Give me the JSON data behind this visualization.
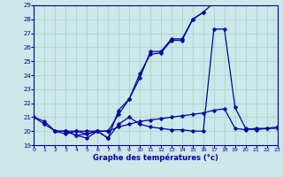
{
  "xlabel": "Graphe des températures (°c)",
  "bg_color": "#cce8e8",
  "grid_color": "#aacccc",
  "line_color": "#0000aa",
  "x_min": 0,
  "x_max": 23,
  "y_min": 19,
  "y_max": 29,
  "series1_x": [
    0,
    1,
    2,
    3,
    4,
    5,
    6,
    7,
    8,
    9,
    10,
    11,
    12,
    13,
    14,
    15,
    16,
    17
  ],
  "series1_y": [
    21.0,
    20.7,
    20.0,
    20.0,
    19.7,
    19.5,
    20.0,
    19.5,
    21.5,
    22.3,
    23.8,
    25.7,
    25.7,
    26.6,
    26.6,
    28.0,
    28.5,
    29.2
  ],
  "series2_x": [
    0,
    1,
    2,
    3,
    4,
    5,
    6,
    7,
    8,
    9,
    10,
    11,
    12,
    13,
    14,
    15,
    16,
    17,
    18,
    19,
    20,
    21,
    22,
    23
  ],
  "series2_y": [
    21.0,
    20.5,
    20.0,
    19.8,
    20.0,
    20.0,
    20.0,
    20.0,
    20.3,
    20.5,
    20.7,
    20.8,
    20.9,
    21.0,
    21.1,
    21.2,
    21.3,
    21.5,
    21.6,
    20.2,
    20.1,
    20.2,
    20.2,
    20.3
  ],
  "series3_x": [
    2,
    3,
    4,
    5,
    6,
    7,
    8,
    9,
    10,
    11,
    12,
    13,
    14,
    15,
    16,
    17,
    18,
    19,
    20,
    21,
    22,
    23
  ],
  "series3_y": [
    20.0,
    20.0,
    19.7,
    19.8,
    20.0,
    19.5,
    20.5,
    21.0,
    20.5,
    20.3,
    20.2,
    20.1,
    20.1,
    20.0,
    20.0,
    27.3,
    27.3,
    21.7,
    20.2,
    20.1,
    20.2,
    20.2
  ],
  "series4_x": [
    3,
    4,
    5,
    6,
    7,
    8,
    9,
    10,
    11,
    12,
    13,
    14,
    15,
    16
  ],
  "series4_y": [
    20.0,
    20.0,
    19.8,
    20.0,
    20.0,
    21.2,
    22.3,
    24.1,
    25.5,
    25.6,
    26.5,
    26.5,
    28.0,
    28.5
  ]
}
